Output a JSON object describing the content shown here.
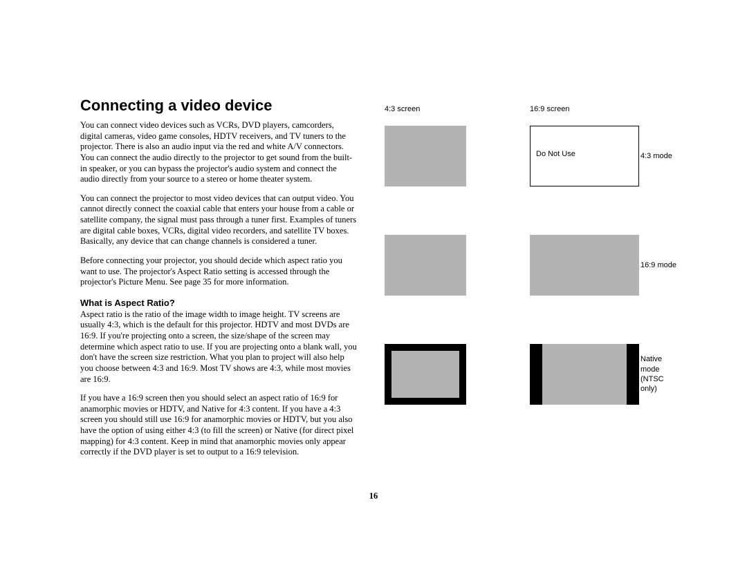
{
  "title": "Connecting a video device",
  "paragraphs": {
    "p1": "You can connect video devices such as VCRs, DVD players, camcorders, digital cameras, video game consoles, HDTV receivers, and TV tuners to the projector. There is also an audio input via the red and white A/V connectors. You can connect the audio directly to the projector to get sound from the built-in speaker, or you can bypass the projector's audio system and connect the audio directly from your source to a stereo or home theater system.",
    "p2": "You can connect the projector to most video devices that can output video. You cannot directly connect the coaxial cable that enters your house from a cable or satellite company, the signal must pass through a tuner first. Examples of tuners are digital cable boxes, VCRs, digital video recorders, and satellite TV boxes. Basically, any device that can change channels is considered a tuner.",
    "p3": "Before connecting your projector, you should decide which aspect ratio you want to use. The projector's Aspect Ratio setting is accessed through the projector's Picture Menu. See page 35 for more information."
  },
  "subheading": "What is Aspect Ratio?",
  "subparagraphs": {
    "p4": "Aspect ratio is the ratio of the image width to image height. TV screens are usually 4:3, which is the default for this projector. HDTV and most DVDs are 16:9. If you're projecting onto a screen, the size/shape of the screen may determine which aspect ratio to use. If you are projecting onto a blank wall, you don't have the screen size restriction. What you plan to project will also help you choose between 4:3 and 16:9. Most TV shows are 4:3, while most movies are 16:9.",
    "p5": "If you have a 16:9 screen then you should select an aspect ratio of 16:9 for anamorphic movies or HDTV, and Native for 4:3 content. If you have a 4:3 screen you should still use 16:9 for anamorphic movies or HDTV, but you also have the option of using either 4:3 (to fill the screen) or Native (for direct pixel mapping) for 4:3 content. Keep in mind that anamorphic movies only appear correctly if the DVD player is set to output to a 16:9 television."
  },
  "pageNumber": "16",
  "diagram": {
    "columnLabels": {
      "left": "4:3 screen",
      "right": "16:9 screen"
    },
    "rows": [
      {
        "label": "4:3 mode",
        "rightNote": "Do Not Use"
      },
      {
        "label": "16:9 mode"
      },
      {
        "label": "Native mode (NTSC only)"
      }
    ],
    "colors": {
      "fill": "#b3b3b3",
      "outline": "#000000",
      "background": "#ffffff",
      "black": "#000000"
    },
    "sizes": {
      "box43_w": 118,
      "box43_h": 88,
      "box169_w": 158,
      "box169_h": 88,
      "letterbox_border": 10,
      "pillarbox_border": 18
    },
    "fonts": {
      "label_family": "Gill Sans",
      "label_size_pt": 11
    }
  }
}
